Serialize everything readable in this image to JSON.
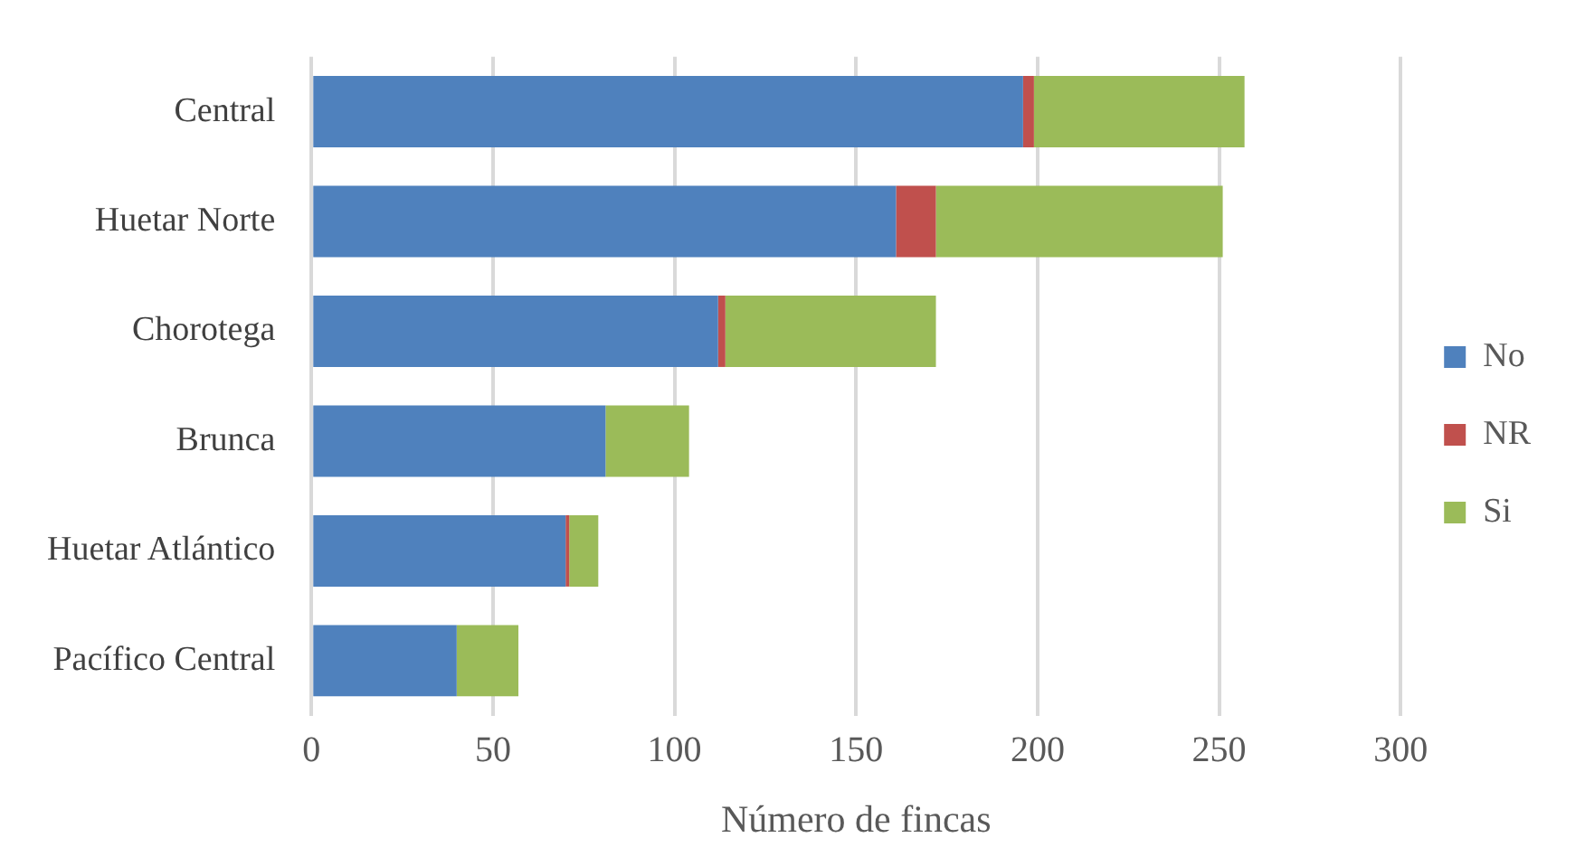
{
  "chart_data": {
    "type": "bar",
    "orientation": "horizontal",
    "stacked": true,
    "xlabel": "Número de fincas",
    "categories": [
      "Central",
      "Huetar Norte",
      "Chorotega",
      "Brunca",
      "Huetar Atlántico",
      "Pacífico Central"
    ],
    "series": [
      {
        "name": "No",
        "color": "#4f81bd",
        "values": [
          196,
          161,
          112,
          81,
          70,
          40
        ]
      },
      {
        "name": "NR",
        "color": "#c0504d",
        "values": [
          3,
          11,
          2,
          0,
          1,
          0
        ]
      },
      {
        "name": "Si",
        "color": "#9bbb59",
        "values": [
          58,
          79,
          58,
          23,
          8,
          17
        ]
      }
    ],
    "xlim": [
      0,
      300
    ],
    "xticks": [
      0,
      50,
      100,
      150,
      200,
      250,
      300
    ],
    "grid": "x",
    "legend": "right"
  }
}
